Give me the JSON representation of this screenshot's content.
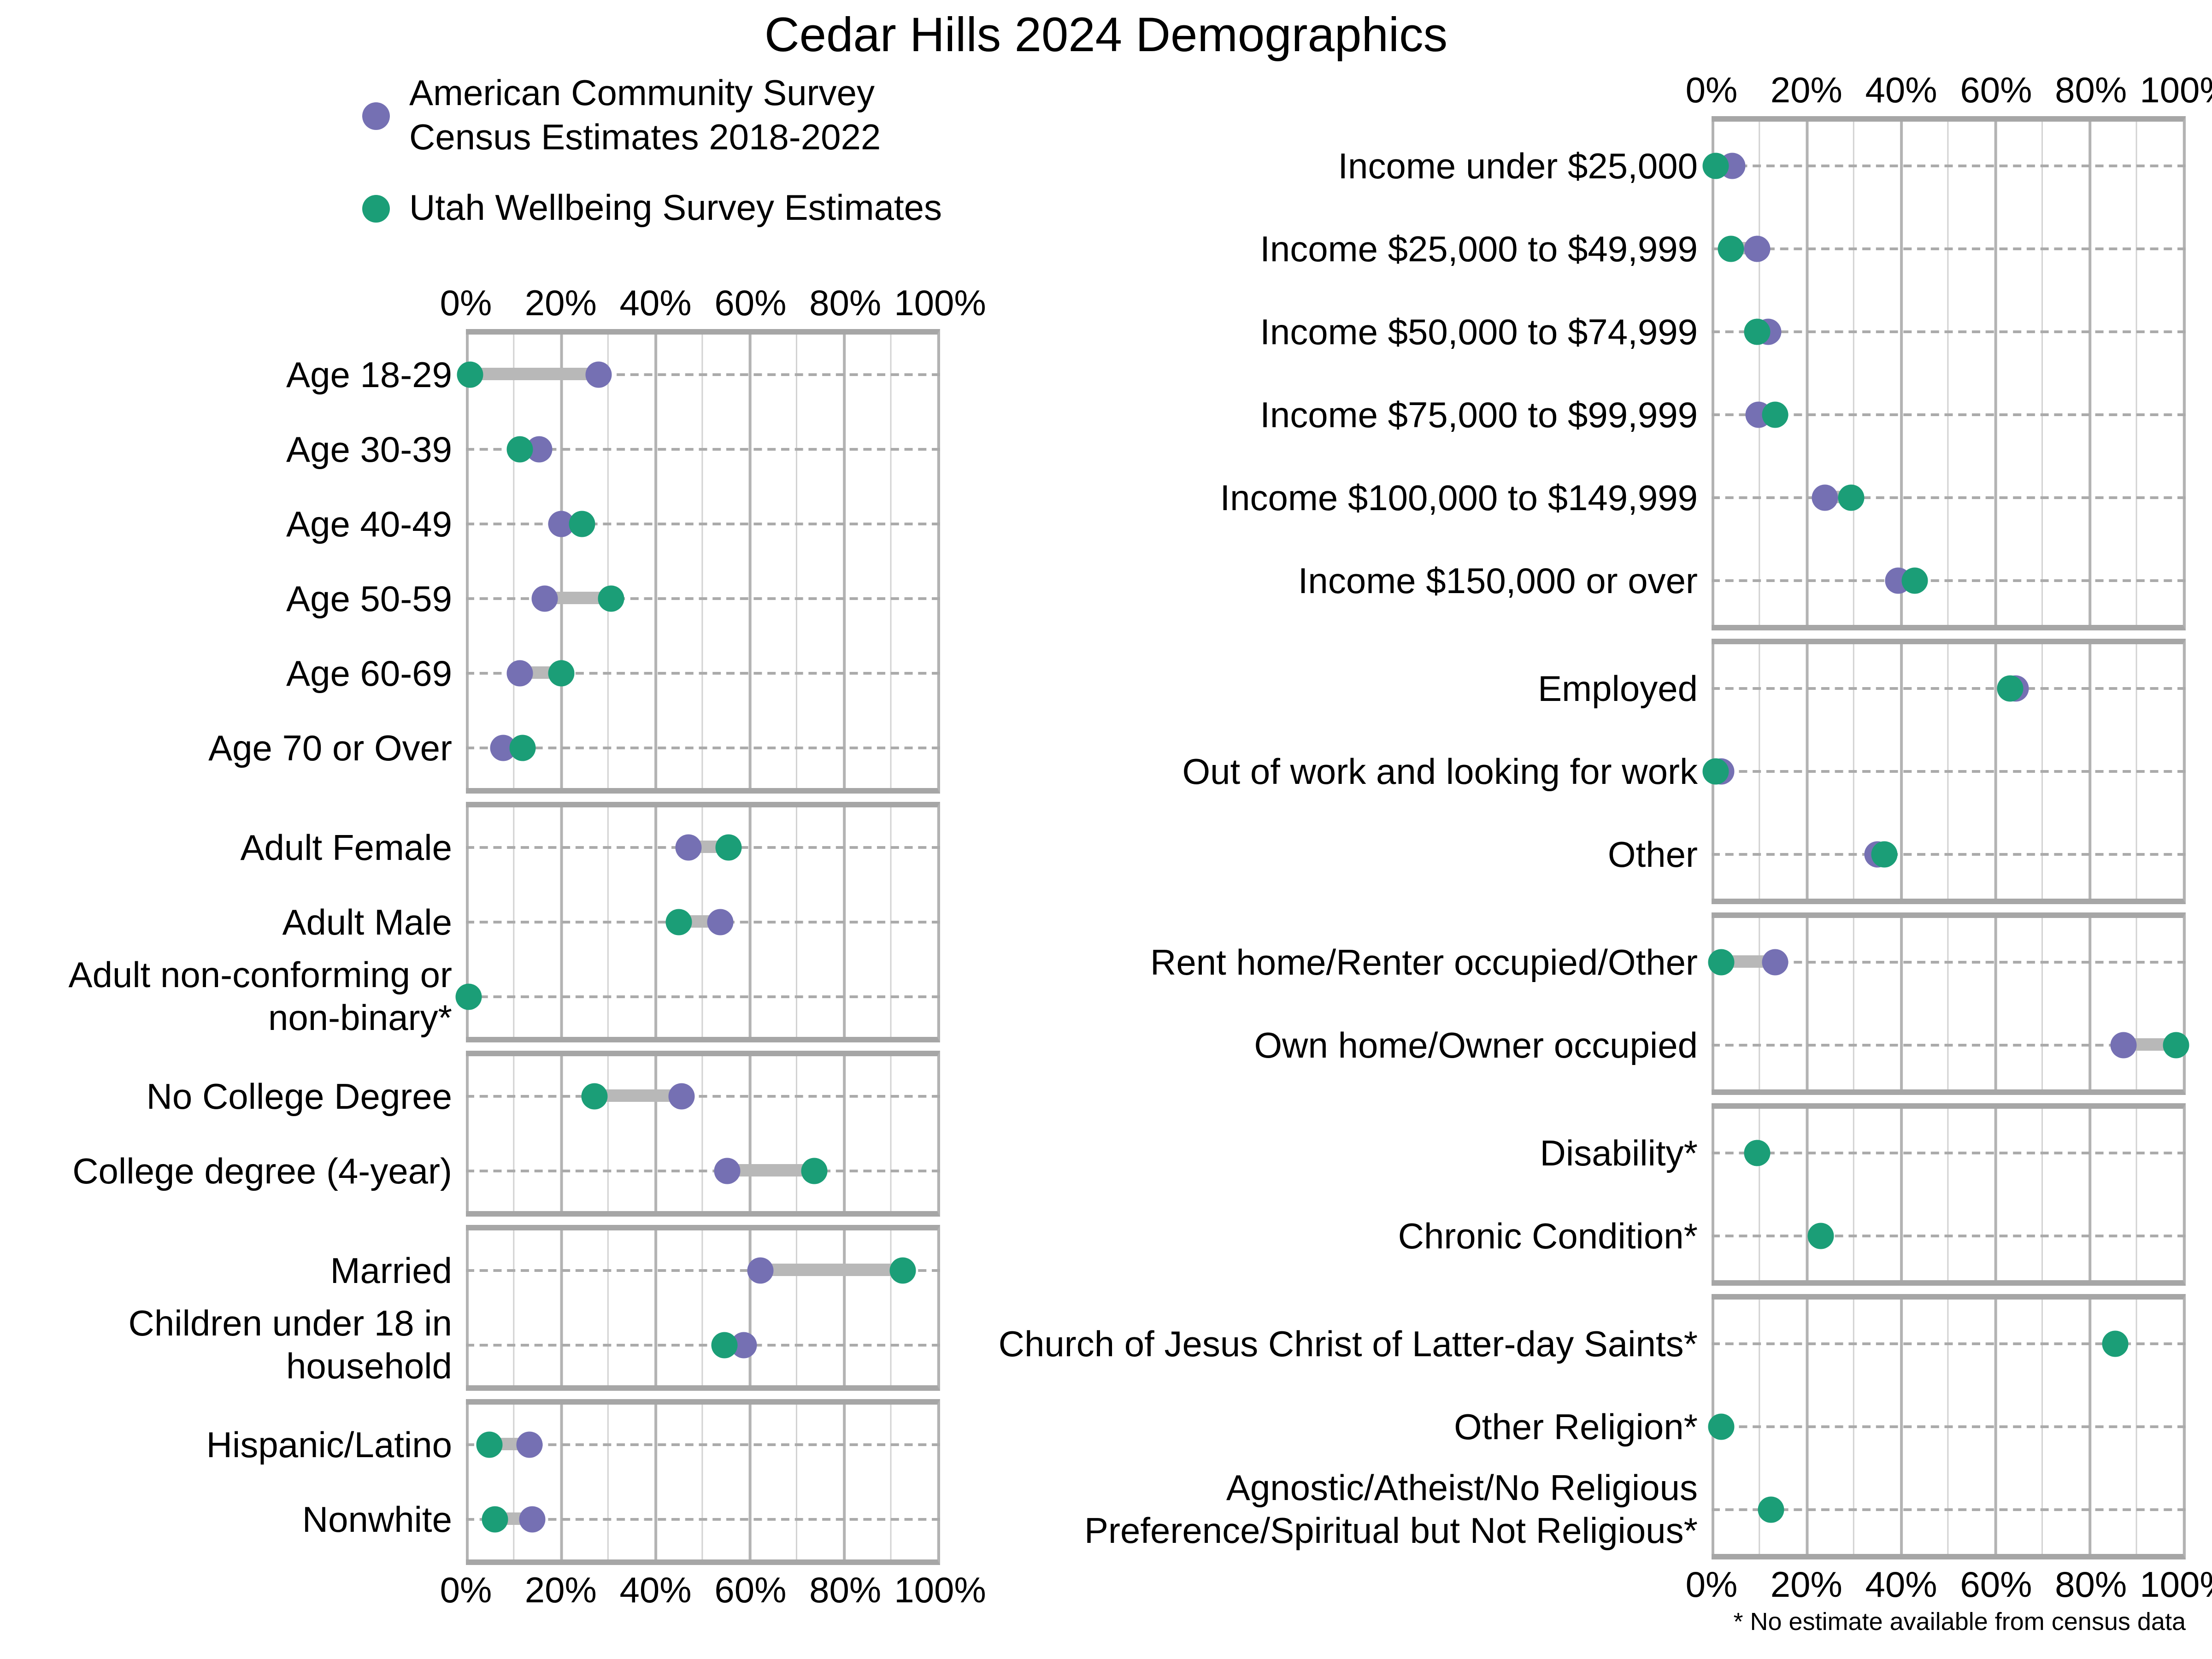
{
  "title": "Cedar Hills 2024 Demographics",
  "footnote": "* No estimate available from census data",
  "colors": {
    "acs": "#7570B3",
    "uws": "#1B9E77",
    "connector": "#B8B8B8",
    "row_dash": "#ABABAB",
    "grid_major": "#B3B3B3",
    "grid_minor": "#D2D2D2",
    "panel_border": "#A6A6A6"
  },
  "legend": {
    "items": [
      {
        "series": "acs",
        "lines": [
          "American Community Survey",
          "Census Estimates 2018-2022"
        ]
      },
      {
        "series": "uws",
        "lines": [
          "Utah Wellbeing Survey Estimates"
        ]
      }
    ]
  },
  "chart_data": {
    "type": "scatter",
    "subtype": "dumbbell-dot-plot",
    "title": "Cedar Hills 2024 Demographics",
    "xlabel": "",
    "ylabel": "",
    "xlim": [
      0,
      100
    ],
    "x_ticks": [
      "0%",
      "20%",
      "40%",
      "60%",
      "80%",
      "100%"
    ],
    "grid": "on",
    "legend_position": "top-left",
    "footnote": "* No estimate available from census data",
    "series": [
      {
        "key": "acs",
        "name": "American Community Survey Census Estimates 2018-2022",
        "color": "#7570B3"
      },
      {
        "key": "uws",
        "name": "Utah Wellbeing Survey Estimates",
        "color": "#1B9E77"
      }
    ],
    "columns": [
      {
        "side": "left",
        "panels": [
          {
            "rows": [
              {
                "label": "Age 18-29",
                "acs": 28,
                "uws": 1
              },
              {
                "label": "Age 30-39",
                "acs": 15.5,
                "uws": 11.5
              },
              {
                "label": "Age 40-49",
                "acs": 20,
                "uws": 24.5
              },
              {
                "label": "Age 50-59",
                "acs": 16.5,
                "uws": 30.5
              },
              {
                "label": "Age 60-69",
                "acs": 11.5,
                "uws": 20
              },
              {
                "label": "Age 70 or Over",
                "acs": 8,
                "uws": 12
              }
            ]
          },
          {
            "rows": [
              {
                "label": "Adult Female",
                "acs": 47,
                "uws": 55.5
              },
              {
                "label": "Adult Male",
                "acs": 53.5,
                "uws": 45
              },
              {
                "label": "Adult non-conforming or non-binary*",
                "acs": null,
                "uws": 0.5
              }
            ]
          },
          {
            "rows": [
              {
                "label": "No College Degree",
                "acs": 45.5,
                "uws": 27
              },
              {
                "label": "College degree (4-year)",
                "acs": 55,
                "uws": 73.5
              }
            ]
          },
          {
            "rows": [
              {
                "label": "Married",
                "acs": 62,
                "uws": 92
              },
              {
                "label": "Children under 18 in household",
                "acs": 58.5,
                "uws": 54.5
              }
            ]
          },
          {
            "rows": [
              {
                "label": "Hispanic/Latino",
                "acs": 13.5,
                "uws": 5
              },
              {
                "label": "Nonwhite",
                "acs": 14,
                "uws": 6
              }
            ]
          }
        ]
      },
      {
        "side": "right",
        "panels": [
          {
            "rows": [
              {
                "label": "Income under $25,000",
                "acs": 4.5,
                "uws": 1
              },
              {
                "label": "Income $25,000 to $49,999",
                "acs": 9.5,
                "uws": 4
              },
              {
                "label": "Income $50,000 to $74,999",
                "acs": 12,
                "uws": 9.5
              },
              {
                "label": "Income $75,000 to $99,999",
                "acs": 10,
                "uws": 13.5
              },
              {
                "label": "Income $100,000 to $149,999",
                "acs": 24,
                "uws": 29.5
              },
              {
                "label": "Income $150,000 or over",
                "acs": 39.5,
                "uws": 43
              }
            ]
          },
          {
            "rows": [
              {
                "label": "Employed",
                "acs": 64,
                "uws": 63
              },
              {
                "label": "Out of work and looking for work",
                "acs": 2,
                "uws": 1
              },
              {
                "label": "Other",
                "acs": 35,
                "uws": 36.5
              }
            ]
          },
          {
            "rows": [
              {
                "label": "Rent home/Renter occupied/Other",
                "acs": 13.5,
                "uws": 2
              },
              {
                "label": "Own home/Owner occupied",
                "acs": 87,
                "uws": 98
              }
            ]
          },
          {
            "rows": [
              {
                "label": "Disability*",
                "acs": null,
                "uws": 9.5
              },
              {
                "label": "Chronic Condition*",
                "acs": null,
                "uws": 23
              }
            ]
          },
          {
            "rows": [
              {
                "label": "Church of Jesus Christ of Latter-day Saints*",
                "acs": null,
                "uws": 85
              },
              {
                "label": "Other Religion*",
                "acs": null,
                "uws": 2
              },
              {
                "label": "Agnostic/Atheist/No Religious Preference/Spiritual but Not Religious*",
                "acs": null,
                "uws": 12.5
              }
            ]
          }
        ]
      }
    ]
  }
}
